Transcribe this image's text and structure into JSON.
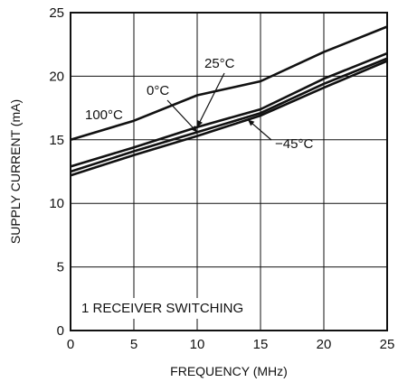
{
  "chart_data": {
    "type": "line",
    "title": "",
    "xlabel": "FREQUENCY (MHz)",
    "ylabel": "SUPPLY CURRENT (mA)",
    "xlim": [
      0,
      25
    ],
    "ylim": [
      0,
      25
    ],
    "xticks": [
      0,
      5,
      10,
      15,
      20,
      25
    ],
    "yticks": [
      0,
      5,
      10,
      15,
      20,
      25
    ],
    "grid": true,
    "annotation": "1 RECEIVER SWITCHING",
    "colors": {
      "line": "#111111",
      "grid": "#111111",
      "background": "#ffffff"
    },
    "series": [
      {
        "name": "100°C",
        "x": [
          0,
          5,
          10,
          15,
          20,
          25
        ],
        "y": [
          15.0,
          16.5,
          18.5,
          19.6,
          21.9,
          23.9
        ]
      },
      {
        "name": "25°C",
        "x": [
          0,
          5,
          10,
          15,
          20,
          25
        ],
        "y": [
          12.9,
          14.4,
          16.0,
          17.4,
          19.8,
          21.8
        ]
      },
      {
        "name": "0°C",
        "x": [
          0,
          5,
          10,
          15,
          20,
          25
        ],
        "y": [
          12.5,
          14.1,
          15.6,
          17.1,
          19.4,
          21.4
        ]
      },
      {
        "name": "−45°C",
        "x": [
          0,
          5,
          10,
          15,
          20,
          25
        ],
        "y": [
          12.2,
          13.8,
          15.3,
          16.9,
          19.1,
          21.2
        ]
      }
    ]
  }
}
